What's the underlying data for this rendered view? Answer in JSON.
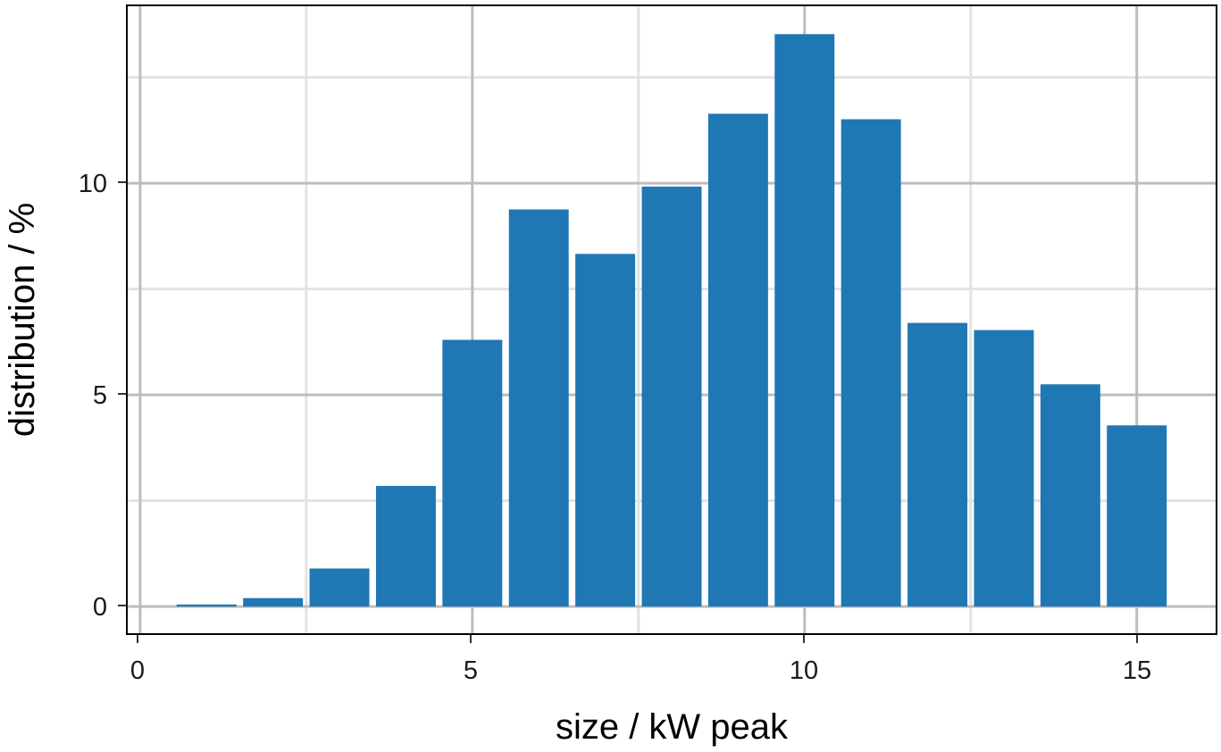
{
  "chart_data": {
    "type": "bar",
    "x": [
      1,
      2,
      3,
      4,
      5,
      6,
      7,
      8,
      9,
      10,
      11,
      12,
      13,
      14,
      15
    ],
    "values": [
      0.05,
      0.2,
      0.9,
      2.85,
      6.3,
      9.38,
      8.33,
      9.92,
      11.64,
      13.52,
      11.51,
      6.7,
      6.53,
      5.25,
      4.28
    ],
    "xlabel": "size / kW peak",
    "ylabel": "distribution / %",
    "xlim": [
      -0.2,
      16.2
    ],
    "ylim": [
      -0.65,
      14.2
    ],
    "x_ticks": [
      "0",
      "5",
      "10",
      "15"
    ],
    "y_ticks": [
      "0",
      "5",
      "10"
    ],
    "grid": true,
    "colors": {
      "bar": "#1f77b4",
      "background": "#ffffff"
    }
  }
}
